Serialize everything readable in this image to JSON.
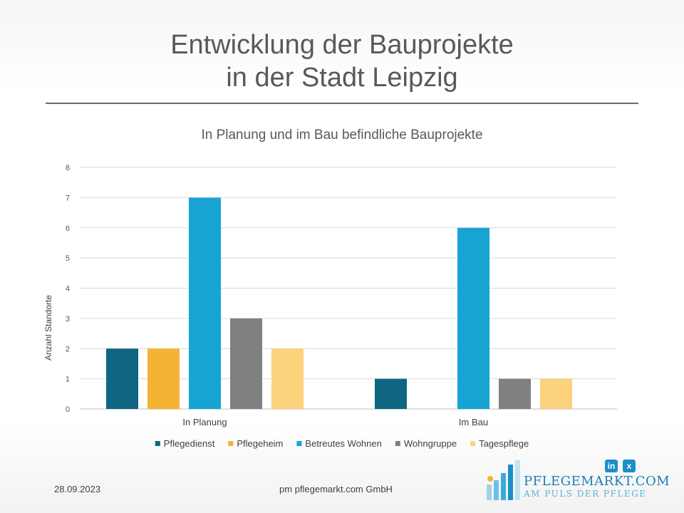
{
  "slide": {
    "title_line1": "Entwicklung der Bauprojekte",
    "title_line2": "in der Stadt Leipzig",
    "footer_date": "28.09.2023",
    "footer_company": "pm pflegemarkt.com GmbH"
  },
  "social": {
    "linkedin": "in",
    "xing": "x"
  },
  "logo": {
    "name": "PFLEGEMARKT.COM",
    "tagline": "AM PULS DER PFLEGE",
    "color": "#1b7fb5"
  },
  "chart_data": {
    "type": "bar",
    "title": "In Planung und im Bau befindliche Bauprojekte",
    "xlabel": "",
    "ylabel": "Anzahl Standorte",
    "ylim": [
      0,
      8
    ],
    "yticks": [
      0,
      1,
      2,
      3,
      4,
      5,
      6,
      7,
      8
    ],
    "grid": true,
    "legend_position": "bottom",
    "categories": [
      "In Planung",
      "Im Bau"
    ],
    "series": [
      {
        "name": "Pflegedienst",
        "color": "#0e6682",
        "values": [
          2,
          1
        ]
      },
      {
        "name": "Pflegeheim",
        "color": "#f5b335",
        "values": [
          2,
          0
        ]
      },
      {
        "name": "Betreutes Wohnen",
        "color": "#17a4d2",
        "values": [
          7,
          6
        ]
      },
      {
        "name": "Wohngruppe",
        "color": "#808080",
        "values": [
          3,
          1
        ]
      },
      {
        "name": "Tagespflege",
        "color": "#fcd27d",
        "values": [
          2,
          1
        ]
      }
    ]
  }
}
